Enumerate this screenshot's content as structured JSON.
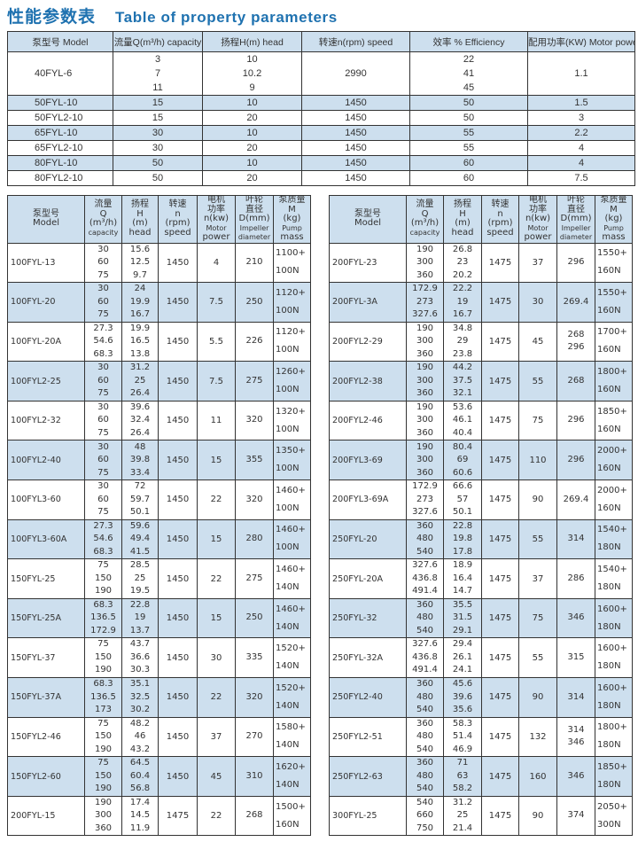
{
  "title": {
    "cn": "性能参数表",
    "en": "Table of property parameters"
  },
  "top_table": {
    "headers": [
      "泵型号  Model",
      "流量Q(m³/h) capacity",
      "扬程H(m)   head",
      "转速n(rpm)  speed",
      "效率 %  Efficiency",
      "配用功率(KW) Motor power"
    ],
    "rows": [
      {
        "model": "40FYL-6",
        "q": [
          "3",
          "7",
          "11"
        ],
        "h": [
          "10",
          "10.2",
          "9"
        ],
        "n": "2990",
        "eff": [
          "22",
          "41",
          "45"
        ],
        "power": "1.1"
      },
      {
        "model": "50FYL-10",
        "q": [
          "15"
        ],
        "h": [
          "10"
        ],
        "n": "1450",
        "eff": [
          "50"
        ],
        "power": "1.5"
      },
      {
        "model": "50FYL2-10",
        "q": [
          "15"
        ],
        "h": [
          "20"
        ],
        "n": "1450",
        "eff": [
          "50"
        ],
        "power": "3"
      },
      {
        "model": "65FYL-10",
        "q": [
          "30"
        ],
        "h": [
          "10"
        ],
        "n": "1450",
        "eff": [
          "55"
        ],
        "power": "2.2"
      },
      {
        "model": "65FYL2-10",
        "q": [
          "30"
        ],
        "h": [
          "20"
        ],
        "n": "1450",
        "eff": [
          "55"
        ],
        "power": "4"
      },
      {
        "model": "80FYL-10",
        "q": [
          "50"
        ],
        "h": [
          "10"
        ],
        "n": "1450",
        "eff": [
          "60"
        ],
        "power": "4"
      },
      {
        "model": "80FYL2-10",
        "q": [
          "50"
        ],
        "h": [
          "20"
        ],
        "n": "1450",
        "eff": [
          "60"
        ],
        "power": "7.5"
      }
    ]
  },
  "lower_headers": [
    [
      "泵型号",
      "Model"
    ],
    [
      "流量",
      "Q",
      "(m³/h)",
      "capacity"
    ],
    [
      "扬程",
      "H",
      "(m)",
      "head"
    ],
    [
      "转速",
      "n",
      "(rpm)",
      "speed"
    ],
    [
      "电机",
      "功率",
      "n(kw)",
      "Motor",
      "power"
    ],
    [
      "叶轮",
      "直径",
      "D(mm)",
      "Impeller",
      "diameter"
    ],
    [
      "泵质量",
      "M",
      "(kg)",
      "Pump",
      "mass"
    ]
  ],
  "left_table": {
    "rows": [
      {
        "model": "100FYL-13",
        "q": [
          "30",
          "60",
          "75"
        ],
        "h": [
          "15.6",
          "12.5",
          "9.7"
        ],
        "n": "1450",
        "p": "4",
        "d": [
          "210"
        ],
        "m": [
          "1100+",
          "100N"
        ]
      },
      {
        "model": "100FYL-20",
        "q": [
          "30",
          "60",
          "75"
        ],
        "h": [
          "24",
          "19.9",
          "16.7"
        ],
        "n": "1450",
        "p": "7.5",
        "d": [
          "250"
        ],
        "m": [
          "1120+",
          "100N"
        ]
      },
      {
        "model": "100FYL-20A",
        "q": [
          "27.3",
          "54.6",
          "68.3"
        ],
        "h": [
          "19.9",
          "16.5",
          "13.8"
        ],
        "n": "1450",
        "p": "5.5",
        "d": [
          "226"
        ],
        "m": [
          "1120+",
          "100N"
        ]
      },
      {
        "model": "100FYL2-25",
        "q": [
          "30",
          "60",
          "75"
        ],
        "h": [
          "31.2",
          "25",
          "26.4"
        ],
        "n": "1450",
        "p": "7.5",
        "d": [
          "275"
        ],
        "m": [
          "1260+",
          "100N"
        ]
      },
      {
        "model": "100FYL2-32",
        "q": [
          "30",
          "60",
          "75"
        ],
        "h": [
          "39.6",
          "32.4",
          "26.4"
        ],
        "n": "1450",
        "p": "11",
        "d": [
          "320"
        ],
        "m": [
          "1320+",
          "100N"
        ]
      },
      {
        "model": "100FYL2-40",
        "q": [
          "30",
          "60",
          "75"
        ],
        "h": [
          "48",
          "39.8",
          "33.4"
        ],
        "n": "1450",
        "p": "15",
        "d": [
          "355"
        ],
        "m": [
          "1350+",
          "100N"
        ]
      },
      {
        "model": "100FYL3-60",
        "q": [
          "30",
          "60",
          "75"
        ],
        "h": [
          "72",
          "59.7",
          "50.1"
        ],
        "n": "1450",
        "p": "22",
        "d": [
          "320"
        ],
        "m": [
          "1460+",
          "100N"
        ]
      },
      {
        "model": "100FYL3-60A",
        "q": [
          "27.3",
          "54.6",
          "68.3"
        ],
        "h": [
          "59.6",
          "49.4",
          "41.5"
        ],
        "n": "1450",
        "p": "15",
        "d": [
          "280"
        ],
        "m": [
          "1460+",
          "100N"
        ]
      },
      {
        "model": "150FYL-25",
        "q": [
          "75",
          "150",
          "190"
        ],
        "h": [
          "28.5",
          "25",
          "19.5"
        ],
        "n": "1450",
        "p": "22",
        "d": [
          "275"
        ],
        "m": [
          "1460+",
          "140N"
        ]
      },
      {
        "model": "150FYL-25A",
        "q": [
          "68.3",
          "136.5",
          "172.9"
        ],
        "h": [
          "22.8",
          "19",
          "13.7"
        ],
        "n": "1450",
        "p": "15",
        "d": [
          "250"
        ],
        "m": [
          "1460+",
          "140N"
        ]
      },
      {
        "model": "150FYL-37",
        "q": [
          "75",
          "150",
          "190"
        ],
        "h": [
          "43.7",
          "36.6",
          "30.3"
        ],
        "n": "1450",
        "p": "30",
        "d": [
          "335"
        ],
        "m": [
          "1520+",
          "140N"
        ]
      },
      {
        "model": "150FYL-37A",
        "q": [
          "68.3",
          "136.5",
          "173"
        ],
        "h": [
          "35.1",
          "32.5",
          "30.2"
        ],
        "n": "1450",
        "p": "22",
        "d": [
          "320"
        ],
        "m": [
          "1520+",
          "140N"
        ]
      },
      {
        "model": "150FYL2-46",
        "q": [
          "75",
          "150",
          "190"
        ],
        "h": [
          "48.2",
          "46",
          "43.2"
        ],
        "n": "1450",
        "p": "37",
        "d": [
          "270"
        ],
        "m": [
          "1580+",
          "140N"
        ]
      },
      {
        "model": "150FYL2-60",
        "q": [
          "75",
          "150",
          "190"
        ],
        "h": [
          "64.5",
          "60.4",
          "56.8"
        ],
        "n": "1450",
        "p": "45",
        "d": [
          "310"
        ],
        "m": [
          "1620+",
          "140N"
        ]
      },
      {
        "model": "200FYL-15",
        "q": [
          "190",
          "300",
          "360"
        ],
        "h": [
          "17.4",
          "14.5",
          "11.9"
        ],
        "n": "1475",
        "p": "22",
        "d": [
          "268"
        ],
        "m": [
          "1500+",
          "160N"
        ]
      }
    ]
  },
  "right_table": {
    "rows": [
      {
        "model": "200FYL-23",
        "q": [
          "190",
          "300",
          "360"
        ],
        "h": [
          "26.8",
          "23",
          "20.2"
        ],
        "n": "1475",
        "p": "37",
        "d": [
          "296"
        ],
        "m": [
          "1550+",
          "160N"
        ]
      },
      {
        "model": "200FYL-3A",
        "q": [
          "172.9",
          "273",
          "327.6"
        ],
        "h": [
          "22.2",
          "19",
          "16.7"
        ],
        "n": "1475",
        "p": "30",
        "d": [
          "269.4"
        ],
        "m": [
          "1550+",
          "160N"
        ]
      },
      {
        "model": "200FYL2-29",
        "q": [
          "190",
          "300",
          "360"
        ],
        "h": [
          "34.8",
          "29",
          "23.8"
        ],
        "n": "1475",
        "p": "45",
        "d": [
          "268",
          "296"
        ],
        "m": [
          "1700+",
          "160N"
        ]
      },
      {
        "model": "200FYL2-38",
        "q": [
          "190",
          "300",
          "360"
        ],
        "h": [
          "44.2",
          "37.5",
          "32.1"
        ],
        "n": "1475",
        "p": "55",
        "d": [
          "268"
        ],
        "m": [
          "1800+",
          "160N"
        ]
      },
      {
        "model": "200FYL2-46",
        "q": [
          "190",
          "300",
          "360"
        ],
        "h": [
          "53.6",
          "46.1",
          "40.4"
        ],
        "n": "1475",
        "p": "75",
        "d": [
          "296"
        ],
        "m": [
          "1850+",
          "160N"
        ]
      },
      {
        "model": "200FYL3-69",
        "q": [
          "190",
          "300",
          "360"
        ],
        "h": [
          "80.4",
          "69",
          "60.6"
        ],
        "n": "1475",
        "p": "110",
        "d": [
          "296"
        ],
        "m": [
          "2000+",
          "160N"
        ]
      },
      {
        "model": "200FYL3-69A",
        "q": [
          "172.9",
          "273",
          "327.6"
        ],
        "h": [
          "66.6",
          "57",
          "50.1"
        ],
        "n": "1475",
        "p": "90",
        "d": [
          "269.4"
        ],
        "m": [
          "2000+",
          "160N"
        ]
      },
      {
        "model": "250FYL-20",
        "q": [
          "360",
          "480",
          "540"
        ],
        "h": [
          "22.8",
          "19.8",
          "17.8"
        ],
        "n": "1475",
        "p": "55",
        "d": [
          "314"
        ],
        "m": [
          "1540+",
          "180N"
        ]
      },
      {
        "model": "250FYL-20A",
        "q": [
          "327.6",
          "436.8",
          "491.4"
        ],
        "h": [
          "18.9",
          "16.4",
          "14.7"
        ],
        "n": "1475",
        "p": "37",
        "d": [
          "286"
        ],
        "m": [
          "1540+",
          "180N"
        ]
      },
      {
        "model": "250FYL-32",
        "q": [
          "360",
          "480",
          "540"
        ],
        "h": [
          "35.5",
          "31.5",
          "29.1"
        ],
        "n": "1475",
        "p": "75",
        "d": [
          "346"
        ],
        "m": [
          "1600+",
          "180N"
        ]
      },
      {
        "model": "250FYL-32A",
        "q": [
          "327.6",
          "436.8",
          "491.4"
        ],
        "h": [
          "29.4",
          "26.1",
          "24.1"
        ],
        "n": "1475",
        "p": "55",
        "d": [
          "315"
        ],
        "m": [
          "1600+",
          "180N"
        ]
      },
      {
        "model": "250FYL2-40",
        "q": [
          "360",
          "480",
          "540"
        ],
        "h": [
          "45.6",
          "39.6",
          "35.6"
        ],
        "n": "1475",
        "p": "90",
        "d": [
          "314"
        ],
        "m": [
          "1600+",
          "180N"
        ]
      },
      {
        "model": "250FYL2-51",
        "q": [
          "360",
          "480",
          "540"
        ],
        "h": [
          "58.3",
          "51.4",
          "46.9"
        ],
        "n": "1475",
        "p": "132",
        "d": [
          "314",
          "346"
        ],
        "m": [
          "1800+",
          "180N"
        ]
      },
      {
        "model": "250FYL2-63",
        "q": [
          "360",
          "480",
          "540"
        ],
        "h": [
          "71",
          "63",
          "58.2"
        ],
        "n": "1475",
        "p": "160",
        "d": [
          "346"
        ],
        "m": [
          "1850+",
          "180N"
        ]
      },
      {
        "model": "300FYL-25",
        "q": [
          "540",
          "660",
          "750"
        ],
        "h": [
          "31.2",
          "25",
          "21.4"
        ],
        "n": "1475",
        "p": "90",
        "d": [
          "374"
        ],
        "m": [
          "2050+",
          "300N"
        ]
      }
    ]
  },
  "colors": {
    "title": "#1f72b0",
    "row_shade": "#cddfee",
    "border": "#333333"
  }
}
